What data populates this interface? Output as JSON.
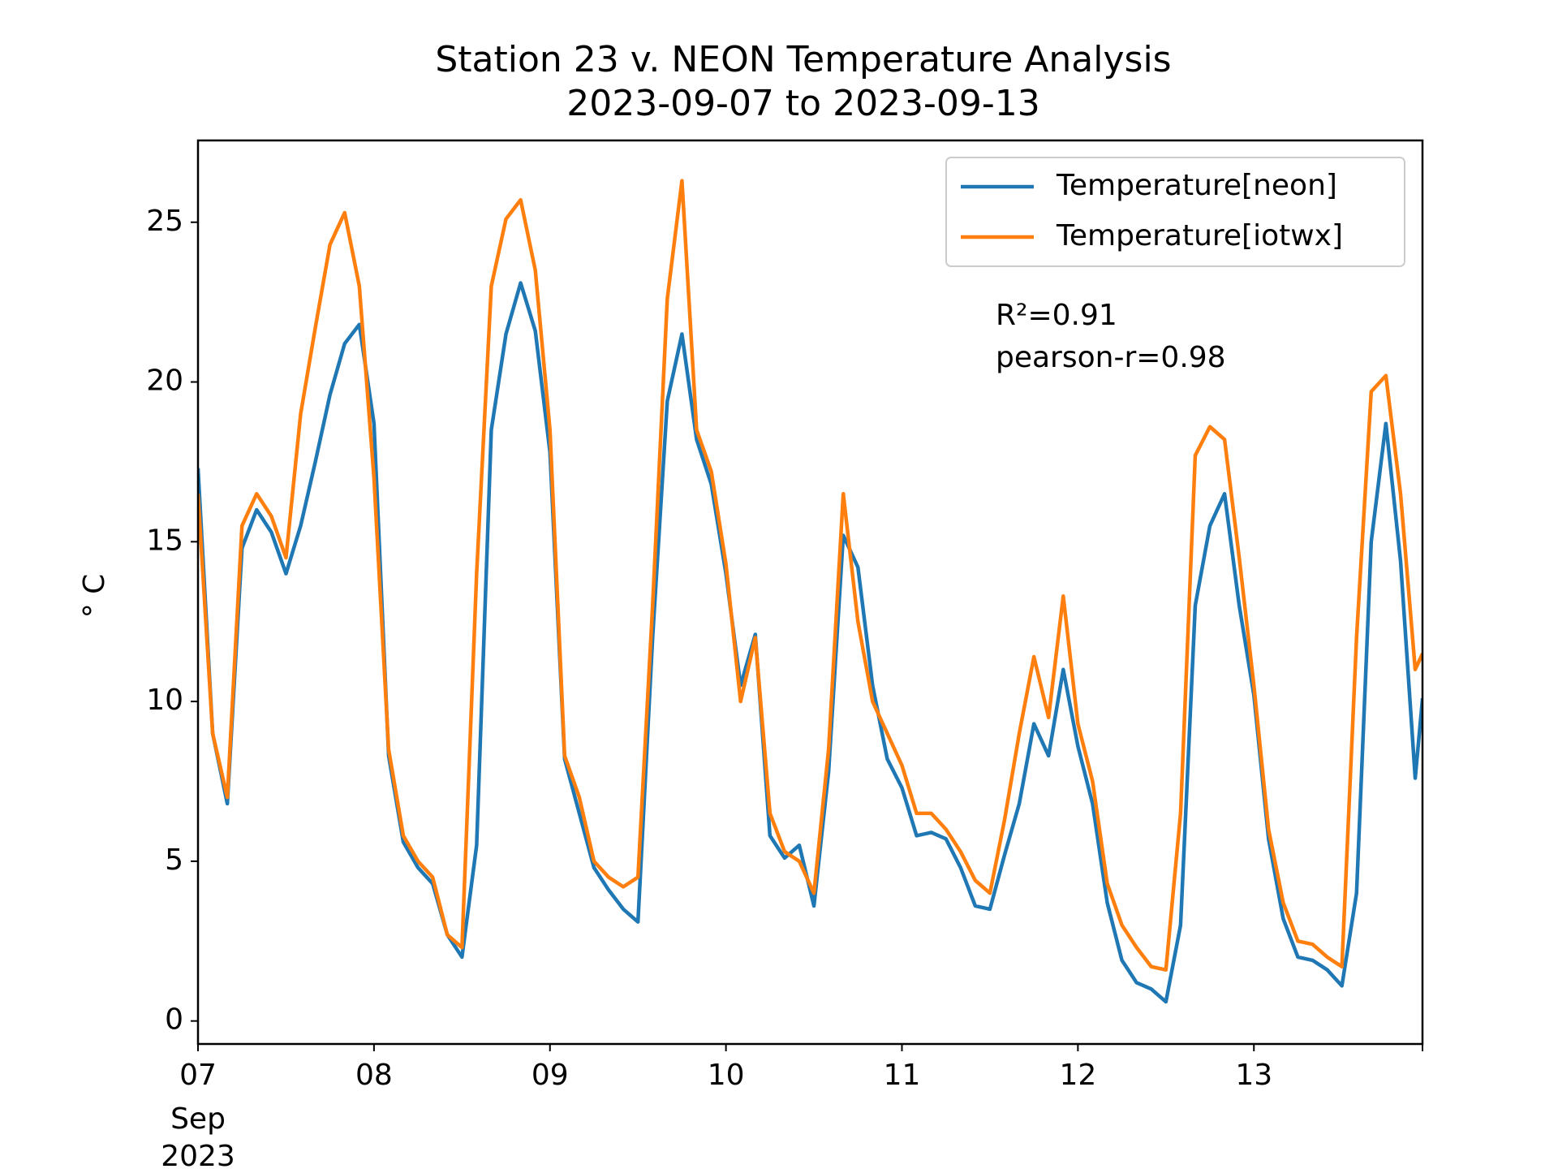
{
  "chart_data": {
    "type": "line",
    "title": "Station 23 v. NEON Temperature Analysis",
    "subtitle": "2023-09-07 to 2023-09-13",
    "y_label": "° C",
    "x": [
      7,
      7.0833,
      7.1667,
      7.25,
      7.3333,
      7.4167,
      7.5,
      7.5833,
      7.6667,
      7.75,
      7.8333,
      7.9167,
      8,
      8.0833,
      8.1667,
      8.25,
      8.3333,
      8.4167,
      8.5,
      8.5833,
      8.6667,
      8.75,
      8.8333,
      8.9167,
      9,
      9.0833,
      9.1667,
      9.25,
      9.3333,
      9.4167,
      9.5,
      9.5833,
      9.6667,
      9.75,
      9.8333,
      9.9167,
      10,
      10.0833,
      10.1667,
      10.25,
      10.3333,
      10.4167,
      10.5,
      10.5833,
      10.6667,
      10.75,
      10.8333,
      10.9167,
      11,
      11.0833,
      11.1667,
      11.25,
      11.3333,
      11.4167,
      11.5,
      11.5833,
      11.6667,
      11.75,
      11.8333,
      11.9167,
      12,
      12.0833,
      12.1667,
      12.25,
      12.3333,
      12.4167,
      12.5,
      12.5833,
      12.6667,
      12.75,
      12.8333,
      12.9167,
      13,
      13.0833,
      13.1667,
      13.25,
      13.3333,
      13.4167,
      13.5,
      13.5833,
      13.6667,
      13.75,
      13.8333,
      13.9167,
      13.9583
    ],
    "series": [
      {
        "name": "Temperature[neon]",
        "color": "#1f77b4",
        "values": [
          17.3,
          9.0,
          6.8,
          14.8,
          16.0,
          15.3,
          14.0,
          15.5,
          17.5,
          19.6,
          21.2,
          21.8,
          18.7,
          8.3,
          5.6,
          4.8,
          4.3,
          2.7,
          2.0,
          5.5,
          18.5,
          21.5,
          23.1,
          21.6,
          17.8,
          8.2,
          6.5,
          4.8,
          4.1,
          3.5,
          3.1,
          12.0,
          19.4,
          21.5,
          18.2,
          16.8,
          14.0,
          10.5,
          12.1,
          5.8,
          5.1,
          5.5,
          3.6,
          7.8,
          15.2,
          14.2,
          10.5,
          8.2,
          7.3,
          5.8,
          5.9,
          5.7,
          4.8,
          3.6,
          3.5,
          5.2,
          6.8,
          9.3,
          8.3,
          11.0,
          8.6,
          6.8,
          3.7,
          1.9,
          1.2,
          1.0,
          0.6,
          3.0,
          13.0,
          15.5,
          16.5,
          13.0,
          10.2,
          5.7,
          3.2,
          2.0,
          1.9,
          1.6,
          1.1,
          4.0,
          15.0,
          18.7,
          14.4,
          7.6,
          10.1
        ]
      },
      {
        "name": "Temperature[iotwx]",
        "color": "#ff7f0e",
        "values": [
          16.5,
          9.0,
          7.0,
          15.5,
          16.5,
          15.8,
          14.5,
          19.0,
          21.7,
          24.3,
          25.3,
          23.0,
          17.0,
          8.5,
          5.8,
          5.0,
          4.5,
          2.7,
          2.3,
          14.0,
          23.0,
          25.1,
          25.7,
          23.5,
          18.5,
          8.3,
          7.0,
          5.0,
          4.5,
          4.2,
          4.5,
          13.0,
          22.6,
          26.3,
          18.5,
          17.2,
          14.3,
          10.0,
          12.0,
          6.5,
          5.3,
          5.0,
          4.0,
          8.5,
          16.5,
          12.5,
          10.0,
          9.0,
          8.0,
          6.5,
          6.5,
          6.0,
          5.3,
          4.4,
          4.0,
          6.3,
          9.0,
          11.4,
          9.5,
          13.3,
          9.3,
          7.5,
          4.3,
          3.0,
          2.3,
          1.7,
          1.6,
          6.5,
          17.7,
          18.6,
          18.2,
          14.5,
          10.5,
          6.0,
          3.7,
          2.5,
          2.4,
          2.0,
          1.7,
          12.0,
          19.7,
          20.2,
          16.5,
          11.0,
          11.5
        ]
      }
    ],
    "xlim": [
      7,
      13.958
    ],
    "xticks": [
      {
        "value": 7,
        "label": "07"
      },
      {
        "value": 8,
        "label": "08"
      },
      {
        "value": 9,
        "label": "09"
      },
      {
        "value": 10,
        "label": "10"
      },
      {
        "value": 11,
        "label": "11"
      },
      {
        "value": 12,
        "label": "12"
      },
      {
        "value": 13,
        "label": "13"
      }
    ],
    "xtick_date_labels": [
      "Sep",
      "2023"
    ],
    "ylim": [
      -0.72,
      27.56
    ],
    "yticks": [
      0,
      5,
      10,
      15,
      20,
      25
    ],
    "grid": false,
    "legend_position": "upper right",
    "annotations": [
      "R²=0.91",
      "pearson-r=0.98"
    ]
  }
}
